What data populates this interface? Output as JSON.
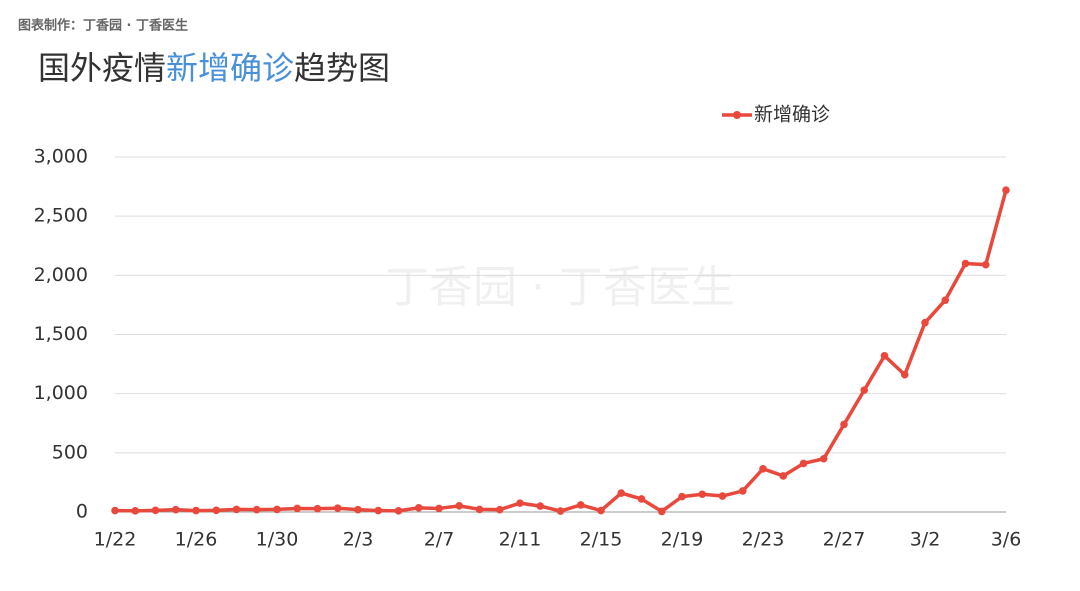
{
  "source": "图表制作：丁香园 · 丁香医生",
  "watermark": "丁香园 · 丁香医生",
  "chart_data": {
    "type": "line",
    "title": [
      "国外疫情",
      "新增确诊",
      "趋势图"
    ],
    "categories": [
      "1/22",
      null,
      null,
      null,
      "1/26",
      null,
      null,
      null,
      "1/30",
      null,
      null,
      null,
      "2/3",
      null,
      null,
      null,
      "2/7",
      null,
      null,
      null,
      "2/11",
      null,
      null,
      null,
      "2/15",
      null,
      null,
      null,
      "2/19",
      null,
      null,
      null,
      "2/23",
      null,
      null,
      null,
      "2/27",
      null,
      null,
      null,
      "3/2",
      null,
      null,
      null,
      "3/6"
    ],
    "series": [
      {
        "name": "新增确诊",
        "color": "#e8493c",
        "values": [
          12,
          10,
          14,
          20,
          12,
          14,
          22,
          20,
          22,
          30,
          28,
          32,
          20,
          12,
          10,
          35,
          30,
          52,
          22,
          20,
          75,
          50,
          8,
          60,
          12,
          160,
          110,
          5,
          130,
          150,
          135,
          178,
          365,
          305,
          410,
          450,
          740,
          1030,
          1320,
          1160,
          1600,
          1790,
          2100,
          2090,
          2720
        ]
      }
    ],
    "ylim": [
      0,
      3000
    ],
    "yticks": [
      0,
      500,
      {
        "value": 1000,
        "label": "1,000"
      },
      {
        "value": 1500,
        "label": "1,500"
      },
      {
        "value": 2000,
        "label": "2,000"
      },
      {
        "value": 2500,
        "label": "2,500"
      },
      {
        "value": 3000,
        "label": "3,000"
      }
    ],
    "grid": true,
    "legend": "top-right"
  }
}
